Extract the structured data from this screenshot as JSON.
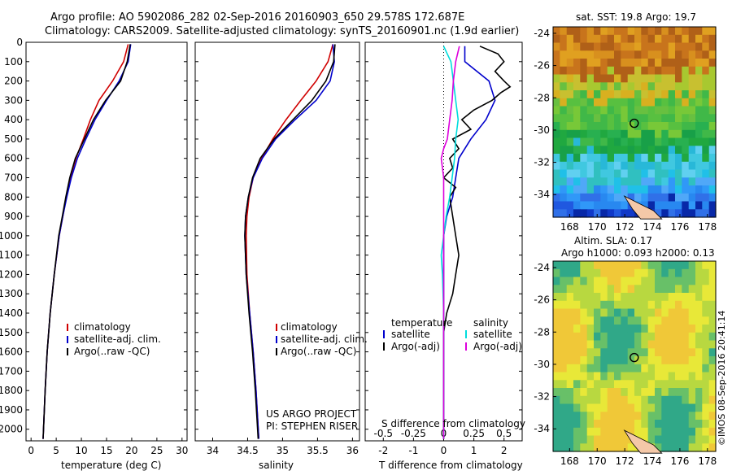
{
  "header": {
    "line1": "Argo profile: AO 5902086_282 02-Sep-2016 20160903_650 29.578S 172.687E",
    "line2": "Climatology: CARS2009. Satellite-adjusted climatology: synTS_20160901.nc (1.9d earlier)"
  },
  "credit": "©IMOS 08-Sep-2016 20:41:14",
  "chart_data": [
    {
      "type": "line",
      "panel": "temperature",
      "xlabel": "temperature (deg C)",
      "xlim": [
        -1,
        31
      ],
      "xticks": [
        "0",
        "5",
        "10",
        "15",
        "20",
        "25",
        "30"
      ],
      "ylim": [
        0,
        2060
      ],
      "yticks": [
        "0",
        "100",
        "200",
        "300",
        "400",
        "500",
        "600",
        "700",
        "800",
        "900",
        "1000",
        "1100",
        "1200",
        "1300",
        "1400",
        "1500",
        "1600",
        "1700",
        "1800",
        "1900",
        "2000"
      ],
      "legend": [
        "climatology",
        "satellite-adj. clim.",
        "Argo(..raw -QC)"
      ],
      "series": [
        {
          "name": "climatology",
          "color": "#d00000",
          "depth": [
            10,
            100,
            200,
            300,
            400,
            500,
            600,
            700,
            800,
            900,
            1000,
            1200,
            1400,
            1600,
            1800,
            2050
          ],
          "values": [
            19.3,
            18.4,
            16.2,
            13.5,
            11.8,
            10.4,
            8.9,
            7.8,
            7.0,
            6.3,
            5.6,
            4.6,
            3.8,
            3.2,
            2.8,
            2.4
          ]
        },
        {
          "name": "satellite-adj. clim.",
          "color": "#0000cc",
          "depth": [
            10,
            100,
            200,
            300,
            400,
            500,
            600,
            700,
            800,
            900,
            1000,
            1200,
            1400,
            1600,
            1800,
            2050
          ],
          "values": [
            19.8,
            19.3,
            17.5,
            15.0,
            12.7,
            10.9,
            9.2,
            8.0,
            7.1,
            6.3,
            5.6,
            4.6,
            3.8,
            3.2,
            2.8,
            2.4
          ]
        },
        {
          "name": "Argo(..raw -QC)",
          "color": "#000000",
          "depth": [
            10,
            100,
            200,
            300,
            400,
            500,
            600,
            700,
            800,
            900,
            1000,
            1200,
            1400,
            1600,
            1800,
            2050
          ],
          "values": [
            19.7,
            19.1,
            17.8,
            14.8,
            12.4,
            10.6,
            8.8,
            7.7,
            6.9,
            6.2,
            5.5,
            4.6,
            3.8,
            3.2,
            2.8,
            2.4
          ]
        }
      ]
    },
    {
      "type": "line",
      "panel": "salinity",
      "xlabel": "salinity",
      "xlim": [
        33.75,
        36.1
      ],
      "xticks": [
        "34",
        "34.5",
        "35",
        "35.5",
        "36"
      ],
      "ylim": [
        0,
        2060
      ],
      "legend": [
        "climatology",
        "satellite-adj. clim.",
        "Argo(..raw -QC)"
      ],
      "annotation": [
        "US ARGO PROJECT",
        "PI: STEPHEN RISER"
      ],
      "series": [
        {
          "name": "climatology",
          "color": "#d00000",
          "depth": [
            10,
            100,
            200,
            300,
            400,
            500,
            600,
            700,
            800,
            900,
            1000,
            1200,
            1400,
            1600,
            1800,
            2050
          ],
          "values": [
            35.72,
            35.65,
            35.48,
            35.26,
            35.05,
            34.86,
            34.7,
            34.58,
            34.52,
            34.49,
            34.48,
            34.49,
            34.53,
            34.58,
            34.62,
            34.66
          ]
        },
        {
          "name": "satellite-adj. clim.",
          "color": "#0000cc",
          "depth": [
            10,
            100,
            200,
            300,
            400,
            500,
            600,
            700,
            800,
            900,
            1000,
            1200,
            1400,
            1600,
            1800,
            2050
          ],
          "values": [
            35.72,
            35.74,
            35.68,
            35.48,
            35.18,
            34.9,
            34.71,
            34.58,
            34.51,
            34.47,
            34.46,
            34.48,
            34.53,
            34.58,
            34.62,
            34.66
          ]
        },
        {
          "name": "Argo(..raw -QC)",
          "color": "#000000",
          "depth": [
            10,
            100,
            200,
            300,
            400,
            500,
            600,
            700,
            800,
            900,
            1000,
            1200,
            1400,
            1600,
            1800,
            2050
          ],
          "values": [
            35.75,
            35.73,
            35.62,
            35.42,
            35.15,
            34.88,
            34.68,
            34.57,
            34.51,
            34.47,
            34.46,
            34.48,
            34.52,
            34.57,
            34.61,
            34.65
          ]
        }
      ]
    },
    {
      "type": "line",
      "panel": "difference",
      "xlabel": "T difference from climatology",
      "xlabel_top": "S difference from climatology",
      "xlim": [
        -2.6,
        2.6
      ],
      "xticks": [
        "-2",
        "-1",
        "0",
        "1",
        "2"
      ],
      "sticks": [
        "-0.5",
        "-0.25",
        "0",
        "0.25",
        "0.5"
      ],
      "ylim": [
        0,
        2060
      ],
      "legend_temperature": {
        "title": "temperature",
        "items": [
          "satellite",
          "Argo(-adj)"
        ]
      },
      "legend_salinity": {
        "title": "salinity",
        "items": [
          "satellite",
          "Argo(-adj)"
        ]
      },
      "series": [
        {
          "name": "satellite",
          "color": "#0000cc",
          "depth": [
            20,
            100,
            200,
            300,
            400,
            500,
            600,
            700,
            800,
            900,
            1000,
            1200,
            1400,
            1600,
            1800,
            2050
          ],
          "values": [
            0.7,
            0.7,
            1.5,
            1.7,
            1.4,
            0.9,
            0.5,
            0.4,
            0.3,
            0.1,
            0.0,
            0.0,
            0.0,
            0.0,
            0.0,
            0.0
          ]
        },
        {
          "name": "Argo(-adj)",
          "color": "#000000",
          "depth": [
            20,
            60,
            100,
            150,
            200,
            230,
            260,
            300,
            350,
            400,
            450,
            500,
            550,
            600,
            650,
            700,
            750,
            800,
            900,
            1000,
            1100,
            1200,
            1300,
            1400,
            1500,
            1700,
            1900,
            2050
          ],
          "values": [
            1.2,
            1.8,
            2.0,
            1.7,
            2.0,
            2.2,
            1.9,
            1.6,
            1.0,
            0.6,
            0.9,
            0.3,
            0.5,
            0.2,
            0.3,
            0.0,
            0.4,
            0.2,
            0.3,
            0.4,
            0.5,
            0.4,
            0.3,
            0.1,
            0.0,
            0.0,
            0.0,
            0.0
          ]
        },
        {
          "name": "satellite (S)",
          "color": "#00dddd",
          "depth": [
            20,
            100,
            200,
            300,
            400,
            500,
            600,
            700,
            800,
            900,
            1000,
            1100,
            1200,
            1400,
            1600,
            1800,
            2050
          ],
          "values": [
            0.0,
            0.06,
            0.08,
            0.1,
            0.12,
            0.1,
            0.09,
            0.07,
            0.05,
            0.02,
            0.0,
            -0.02,
            -0.01,
            0.0,
            0.0,
            0.0,
            0.0
          ]
        },
        {
          "name": "Argo(-adj) (S)",
          "color": "#dd00dd",
          "depth": [
            20,
            100,
            200,
            300,
            400,
            500,
            550,
            600,
            700,
            800,
            900,
            1000,
            1200,
            1400,
            1600,
            1800,
            2050
          ],
          "values": [
            0.13,
            0.1,
            0.08,
            0.07,
            0.05,
            0.03,
            0.0,
            -0.02,
            0.0,
            0.0,
            0.0,
            0.0,
            0.0,
            0.0,
            0.0,
            0.0,
            0.0
          ]
        }
      ]
    },
    {
      "type": "heatmap",
      "panel": "map-sst",
      "title": "sat. SST: 19.8 Argo: 19.7",
      "xticks": [
        "168",
        "170",
        "172",
        "174",
        "176",
        "178"
      ],
      "yticks": [
        "-24",
        "-26",
        "-28",
        "-30",
        "-32",
        "-34"
      ],
      "xlim": [
        166.8,
        178.6
      ],
      "ylim": [
        -35.4,
        -23.6
      ],
      "marker": {
        "lon": 172.687,
        "lat": -29.578
      }
    },
    {
      "type": "heatmap",
      "panel": "map-sla",
      "title": "Altim. SLA: 0.17",
      "subtitle": "Argo h1000: 0.093 h2000: 0.13",
      "xticks": [
        "168",
        "170",
        "172",
        "174",
        "176",
        "178"
      ],
      "yticks": [
        "-24",
        "-26",
        "-28",
        "-30",
        "-32",
        "-34"
      ],
      "xlim": [
        166.8,
        178.6
      ],
      "ylim": [
        -35.4,
        -23.6
      ],
      "marker": {
        "lon": 172.687,
        "lat": -29.578
      }
    }
  ]
}
